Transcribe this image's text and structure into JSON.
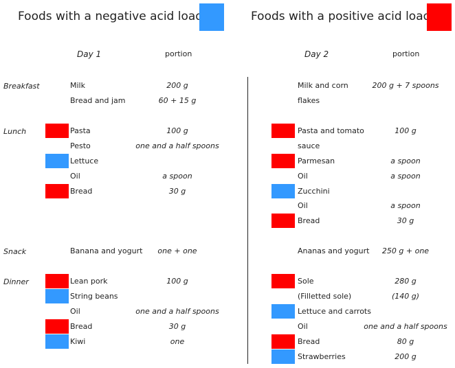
{
  "colors": {
    "negative": "#3399FF",
    "positive": "#FF0000"
  },
  "legend": {
    "negative_label": "Foods with a negative acid load",
    "positive_label": "Foods with a positive acid load"
  },
  "headers": {
    "day1": "Day 1",
    "day1_portion": "portion",
    "day2": "Day 2",
    "day2_portion": "portion"
  },
  "meals": {
    "breakfast": "Breakfast",
    "lunch": "Lunch",
    "snack": "Snack",
    "dinner": "Dinner"
  },
  "day1": [
    {
      "food": "Milk",
      "portion": "200 g",
      "acid": "none"
    },
    {
      "food": "Bread and jam",
      "portion": "60 + 15 g",
      "acid": "none"
    },
    {
      "food": "Pasta",
      "portion": "100 g",
      "acid": "positive"
    },
    {
      "food": "Pesto",
      "portion": "one and a half spoons",
      "acid": "none"
    },
    {
      "food": "Lettuce",
      "portion": "",
      "acid": "negative"
    },
    {
      "food": "Oil",
      "portion": "a spoon",
      "acid": "none"
    },
    {
      "food": "Bread",
      "portion": "30 g",
      "acid": "positive"
    },
    {
      "food": "Banana and yogurt",
      "portion": "one + one",
      "acid": "none"
    },
    {
      "food": "Lean pork",
      "portion": "100 g",
      "acid": "positive"
    },
    {
      "food": "String beans",
      "portion": "",
      "acid": "negative"
    },
    {
      "food": "Oil",
      "portion": "one and a half spoons",
      "acid": "none"
    },
    {
      "food": "Bread",
      "portion": "30 g",
      "acid": "positive"
    },
    {
      "food": "Kiwi",
      "portion": "one",
      "acid": "negative"
    }
  ],
  "day2": [
    {
      "food": "Milk and corn",
      "portion": "200 g + 7 spoons",
      "acid": "none"
    },
    {
      "food": "flakes",
      "portion": "",
      "acid": "none"
    },
    {
      "food": "Pasta and tomato",
      "portion": "100 g",
      "acid": "positive"
    },
    {
      "food": "sauce",
      "portion": "",
      "acid": "none"
    },
    {
      "food": "Parmesan",
      "portion": "a spoon",
      "acid": "positive"
    },
    {
      "food": "Oil",
      "portion": "a spoon",
      "acid": "none"
    },
    {
      "food": "Zucchini",
      "portion": "",
      "acid": "negative"
    },
    {
      "food": "Oil",
      "portion": "a spoon",
      "acid": "none"
    },
    {
      "food": "Bread",
      "portion": "30 g",
      "acid": "positive"
    },
    {
      "food": "Ananas and yogurt",
      "portion": "250 g + one",
      "acid": "none"
    },
    {
      "food": "Sole",
      "portion": "280 g",
      "acid": "positive"
    },
    {
      "food": "(Filletted sole)",
      "portion": "(140 g)",
      "acid": "none"
    },
    {
      "food": "Lettuce and carrots",
      "portion": "",
      "acid": "negative"
    },
    {
      "food": "Oil",
      "portion": "one and a half spoons",
      "acid": "none"
    },
    {
      "food": "Bread",
      "portion": "80 g",
      "acid": "positive"
    },
    {
      "food": "Strawberries",
      "portion": "200 g",
      "acid": "negative"
    }
  ]
}
